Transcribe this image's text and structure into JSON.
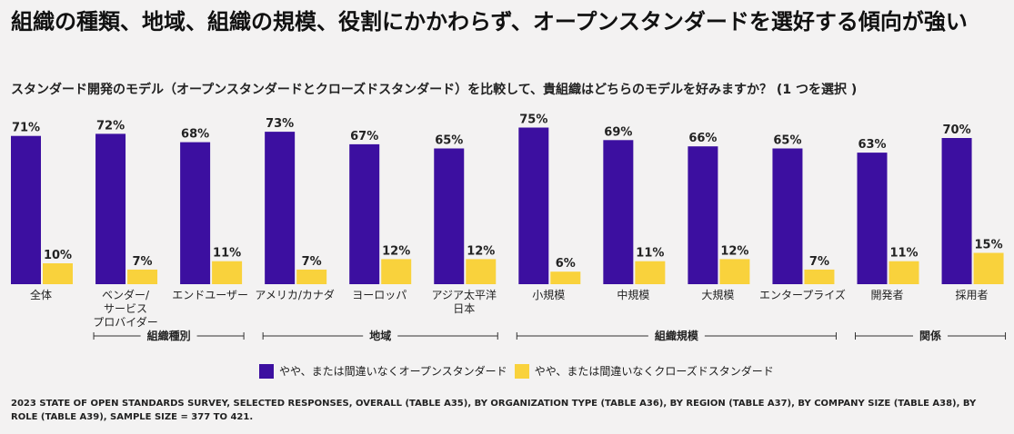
{
  "title": "組織の種類、地域、組織の規模、役割にかかわらず、オープンスタンダードを選好する傾向が強い",
  "subtitle": "スタンダード開発のモデル（オープンスタンダードとクローズドスタンダード）を比較して、貴組織はどちらのモデルを好みますか？ (1 つを選択 )",
  "source": "2023 STATE OF OPEN STANDARDS SURVEY, SELECTED RESPONSES, OVERALL (TABLE A35), BY ORGANIZATION TYPE (TABLE A36), BY REGION (TABLE A37), BY COMPANY SIZE (TABLE A38), BY ROLE (TABLE A39), SAMPLE SIZE = 377 TO 421.",
  "colors": {
    "open": "#3c0fa0",
    "closed": "#f9d23c"
  },
  "chart_data": {
    "type": "bar",
    "categories": [
      "全体",
      "ベンダー/サービスプロバイダー",
      "エンドユーザー",
      "アメリカ/カナダ",
      "ヨーロッパ",
      "アジア太平洋日本",
      "小規模",
      "中規模",
      "大規模",
      "エンタープライズ",
      "開発者",
      "採用者"
    ],
    "category_lines": [
      [
        "全体"
      ],
      [
        "ベンダー/",
        "サービス",
        "プロバイダー"
      ],
      [
        "エンドユーザー"
      ],
      [
        "アメリカ/カナダ"
      ],
      [
        "ヨーロッパ"
      ],
      [
        "アジア太平洋",
        "日本"
      ],
      [
        "小規模"
      ],
      [
        "中規模"
      ],
      [
        "大規模"
      ],
      [
        "エンタープライズ"
      ],
      [
        "開発者"
      ],
      [
        "採用者"
      ]
    ],
    "series": [
      {
        "name": "やや、または間違いなくオープンスタンダード",
        "values": [
          71,
          72,
          68,
          73,
          67,
          65,
          75,
          69,
          66,
          65,
          63,
          70
        ]
      },
      {
        "name": "やや、または間違いなくクローズドスタンダード",
        "values": [
          10,
          7,
          11,
          7,
          12,
          12,
          6,
          11,
          12,
          7,
          11,
          15
        ]
      }
    ],
    "groups": [
      {
        "label": "組織種別",
        "from": 1,
        "to": 2
      },
      {
        "label": "地域",
        "from": 3,
        "to": 5
      },
      {
        "label": "組織規模",
        "from": 6,
        "to": 9
      },
      {
        "label": "関係",
        "from": 10,
        "to": 11
      }
    ],
    "value_suffix": "%",
    "ylim": [
      0,
      75
    ],
    "legend_position": "bottom"
  }
}
